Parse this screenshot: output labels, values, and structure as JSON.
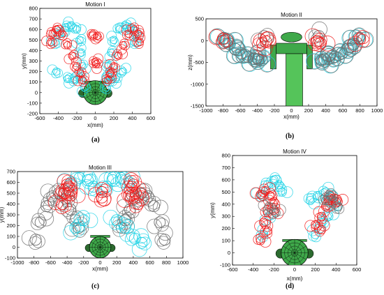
{
  "colors": {
    "cyan": "#22d3e6",
    "red": "#f01818",
    "gray": "#6f6f6f",
    "green": "#3fa84a",
    "dark_green": "#1f5d22"
  },
  "chart_data": [
    {
      "type": "scatter",
      "panel": "(a)",
      "title": "Motion I",
      "xlabel": "x(mm)",
      "ylabel": "y(mm)",
      "xlim": [
        -600,
        600
      ],
      "ylim": [
        -200,
        800
      ],
      "xticks": [
        -600,
        -400,
        -200,
        0,
        200,
        400,
        600
      ],
      "yticks": [
        -200,
        -100,
        0,
        100,
        200,
        300,
        400,
        500,
        600,
        700,
        800
      ],
      "series": [
        {
          "color": "cyan",
          "x": [
            -430,
            -380,
            -320,
            -260,
            -200,
            -170,
            -150,
            -140,
            -170,
            -220,
            -300,
            -420,
            140,
            170,
            200,
            260,
            320,
            380,
            430,
            420,
            300,
            220,
            170,
            140,
            -120,
            120
          ],
          "y": [
            480,
            560,
            620,
            640,
            600,
            500,
            380,
            250,
            150,
            120,
            130,
            200,
            250,
            380,
            500,
            600,
            640,
            620,
            560,
            480,
            200,
            130,
            120,
            150,
            50,
            50
          ]
        },
        {
          "color": "red",
          "x": [
            -480,
            -460,
            -420,
            -360,
            -300,
            -250,
            -200,
            -160,
            -140,
            140,
            160,
            200,
            250,
            300,
            360,
            420,
            460,
            480,
            -30,
            20,
            0,
            10
          ],
          "y": [
            480,
            560,
            600,
            560,
            450,
            350,
            250,
            180,
            120,
            120,
            180,
            250,
            350,
            450,
            560,
            600,
            560,
            480,
            540,
            540,
            290,
            270
          ]
        }
      ]
    },
    {
      "type": "scatter",
      "panel": "(b)",
      "title": "Motion II",
      "xlabel": "x(mm)",
      "ylabel": "z(mm)",
      "xlim": [
        -1000,
        1000
      ],
      "ylim": [
        -1500,
        500
      ],
      "xticks": [
        -1000,
        -800,
        -600,
        -400,
        -200,
        0,
        200,
        400,
        600,
        800,
        1000
      ],
      "yticks": [
        -1500,
        -1000,
        -500,
        0,
        500
      ],
      "series": [
        {
          "color": "cyan",
          "x": [
            -780,
            -720,
            -650,
            -580,
            -500,
            -430,
            -380,
            -340,
            340,
            380,
            430,
            500,
            580,
            650,
            720,
            780
          ],
          "y": [
            50,
            -80,
            -200,
            -300,
            -380,
            -420,
            -430,
            -440,
            -440,
            -430,
            -420,
            -380,
            -300,
            -200,
            -80,
            50
          ]
        },
        {
          "color": "gray",
          "x": [
            -790,
            -730,
            -660,
            -590,
            -510,
            -440,
            -390,
            -350,
            350,
            390,
            440,
            510,
            590,
            660,
            730,
            790,
            -320,
            320
          ],
          "y": [
            60,
            -70,
            -190,
            -290,
            -370,
            -410,
            -430,
            -450,
            -450,
            -430,
            -410,
            -370,
            -290,
            -190,
            -70,
            60,
            100,
            100
          ]
        },
        {
          "color": "red",
          "x": [
            -800,
            -340,
            -300,
            300,
            340,
            800
          ],
          "y": [
            40,
            -60,
            -20,
            -20,
            -60,
            40
          ]
        }
      ]
    },
    {
      "type": "scatter",
      "panel": "(c)",
      "title": "Motion III",
      "xlabel": "x(mm)",
      "ylabel": "y(mm)",
      "xlim": [
        -1000,
        1000
      ],
      "ylim": [
        -100,
        700
      ],
      "xticks": [
        -1000,
        -800,
        -600,
        -400,
        -200,
        0,
        200,
        400,
        600,
        800,
        1000
      ],
      "yticks": [
        -100,
        0,
        100,
        200,
        300,
        400,
        500,
        600,
        700
      ],
      "series": [
        {
          "color": "gray",
          "x": [
            -780,
            -720,
            -650,
            -580,
            -500,
            -420,
            -360,
            -300,
            -260,
            260,
            300,
            360,
            420,
            500,
            580,
            650,
            720,
            780
          ],
          "y": [
            70,
            230,
            380,
            470,
            500,
            450,
            350,
            250,
            180,
            180,
            250,
            350,
            450,
            500,
            470,
            380,
            230,
            70
          ]
        },
        {
          "color": "cyan",
          "x": [
            -350,
            -250,
            -150,
            -80,
            -200,
            -300,
            80,
            150,
            250,
            350,
            300,
            200,
            420,
            500
          ],
          "y": [
            600,
            640,
            620,
            560,
            250,
            180,
            560,
            620,
            640,
            600,
            180,
            250,
            80,
            40
          ]
        },
        {
          "color": "red",
          "x": [
            -460,
            -430,
            -400,
            -380,
            -350,
            350,
            380,
            400,
            430,
            460,
            20,
            20
          ],
          "y": [
            400,
            500,
            580,
            560,
            480,
            480,
            560,
            580,
            500,
            400,
            510,
            460
          ]
        }
      ]
    },
    {
      "type": "scatter",
      "panel": "(d)",
      "title": "Motion IV",
      "xlabel": "x(mm)",
      "ylabel": "y(mm)",
      "xlim": [
        -600,
        600
      ],
      "ylim": [
        -100,
        800
      ],
      "xticks": [
        -600,
        -400,
        -200,
        0,
        200,
        400,
        600
      ],
      "yticks": [
        -100,
        0,
        100,
        200,
        300,
        400,
        500,
        600,
        700,
        800
      ],
      "series": [
        {
          "color": "cyan",
          "x": [
            -320,
            -260,
            -200,
            -150,
            -120,
            -250,
            -300,
            150,
            220,
            300,
            350,
            390,
            330,
            260,
            200
          ],
          "y": [
            480,
            560,
            600,
            560,
            500,
            300,
            150,
            430,
            470,
            500,
            460,
            400,
            300,
            250,
            150
          ]
        },
        {
          "color": "red",
          "x": [
            -330,
            -280,
            -240,
            -200,
            -260,
            -300,
            -260,
            -200,
            200,
            260,
            330,
            380,
            420,
            300,
            260,
            -330
          ],
          "y": [
            480,
            510,
            470,
            420,
            330,
            250,
            180,
            350,
            230,
            190,
            430,
            450,
            420,
            380,
            300,
            100
          ]
        },
        {
          "color": "gray",
          "x": [
            -250,
            -180,
            340,
            420,
            300
          ],
          "y": [
            380,
            330,
            470,
            380,
            430
          ]
        }
      ]
    }
  ]
}
